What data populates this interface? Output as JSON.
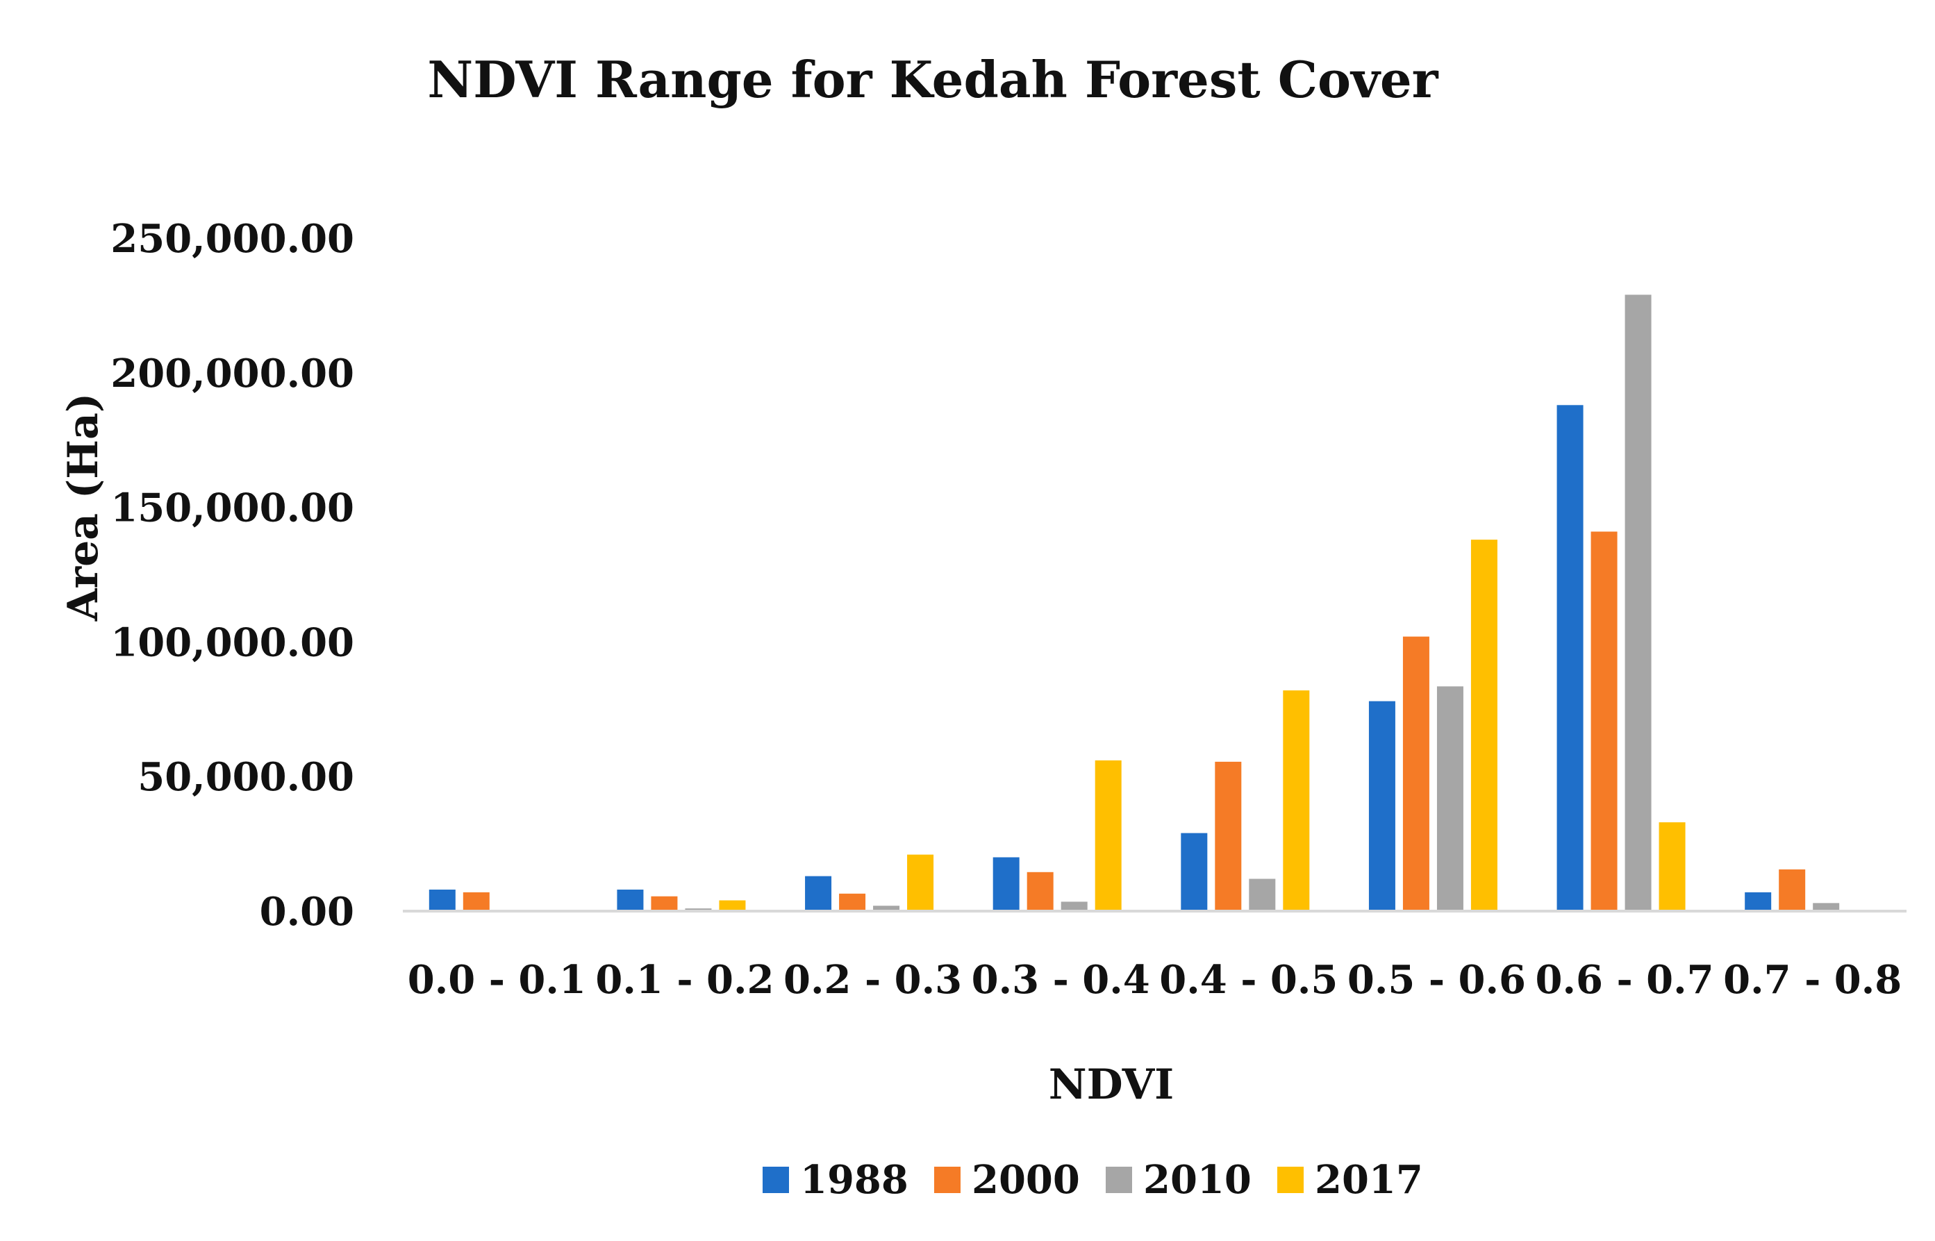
{
  "chart_data": {
    "type": "bar",
    "title": "NDVI Range for Kedah Forest Cover",
    "xlabel": "NDVI",
    "ylabel": "Area (Ha)",
    "ylim": [
      0,
      250000
    ],
    "yticks": [
      "0.00",
      "50,000.00",
      "100,000.00",
      "150,000.00",
      "200,000.00",
      "250,000.00"
    ],
    "ytick_values": [
      0,
      50000,
      100000,
      150000,
      200000,
      250000
    ],
    "grid": false,
    "legend_position": "bottom",
    "categories": [
      "0.0 - 0.1",
      "0.1 - 0.2",
      "0.2 - 0.3",
      "0.3 - 0.4",
      "0.4 - 0.5",
      "0.5 - 0.6",
      "0.6 - 0.7",
      "0.7 - 0.8"
    ],
    "series": [
      {
        "name": "1988",
        "color": "#1f6fc9",
        "values": [
          8000,
          8000,
          13000,
          20000,
          29000,
          78000,
          188000,
          7000
        ]
      },
      {
        "name": "2000",
        "color": "#f57b26",
        "values": [
          7000,
          5500,
          6500,
          14500,
          55500,
          102000,
          141000,
          15500
        ]
      },
      {
        "name": "2010",
        "color": "#a6a6a6",
        "values": [
          300,
          1000,
          2000,
          3500,
          12000,
          83500,
          229000,
          3000
        ]
      },
      {
        "name": "2017",
        "color": "#ffbf00",
        "values": [
          0,
          4000,
          21000,
          56000,
          82000,
          138000,
          33000,
          0
        ]
      }
    ]
  }
}
